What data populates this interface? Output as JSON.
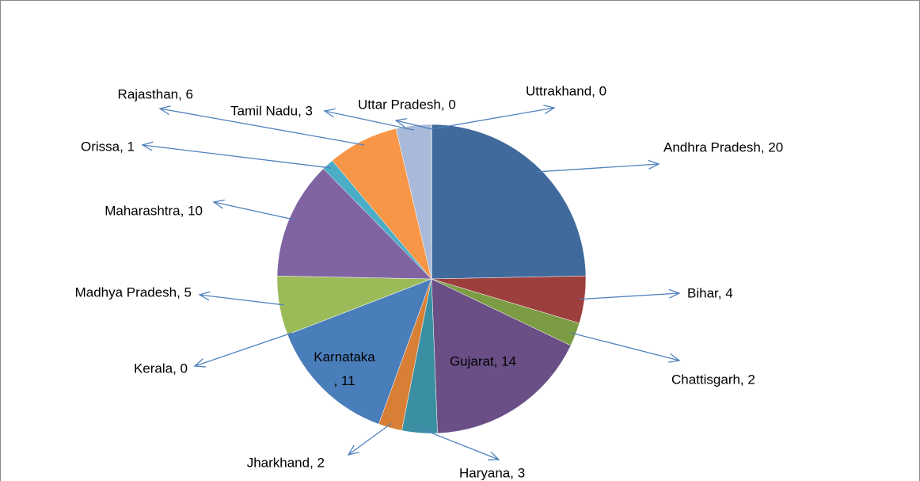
{
  "chart_data": {
    "type": "pie",
    "categories": [
      "Andhra Pradesh",
      "Bihar",
      "Chattisgarh",
      "Gujarat",
      "Haryana",
      "Jharkhand",
      "Karnataka",
      "Kerala",
      "Madhya Pradesh",
      "Maharashtra",
      "Orissa",
      "Rajasthan",
      "Tamil Nadu",
      "Uttar Pradesh",
      "Uttrakhand"
    ],
    "values": [
      20,
      4,
      2,
      14,
      3,
      2,
      11,
      0,
      5,
      10,
      1,
      6,
      3,
      0,
      0
    ],
    "value_labels": [
      "Andhra Pradesh, 20",
      "Bihar, 4",
      "Chattisgarh, 2",
      "Gujarat, 14",
      "Haryana, 3",
      "Jharkhand, 2",
      "Karnataka, 11",
      "Kerala, 0",
      "Madhya Pradesh, 5",
      "Maharashtra, 10",
      "Orissa, 1",
      "Rajasthan, 6",
      "Tamil Nadu, 3",
      "Uttar Pradesh, 0",
      "Uttrakhand, 0"
    ],
    "colors": [
      "#3f6a9b",
      "#9c3f3d",
      "#7c9c43",
      "#6a4f86",
      "#3a8fa3",
      "#d77f35",
      "#4a7ebb",
      "#c0504d",
      "#9bbb59",
      "#8064a2",
      "#4bacc6",
      "#f79646",
      "#a9b9d9",
      "#d99694",
      "#c3d69b"
    ]
  }
}
